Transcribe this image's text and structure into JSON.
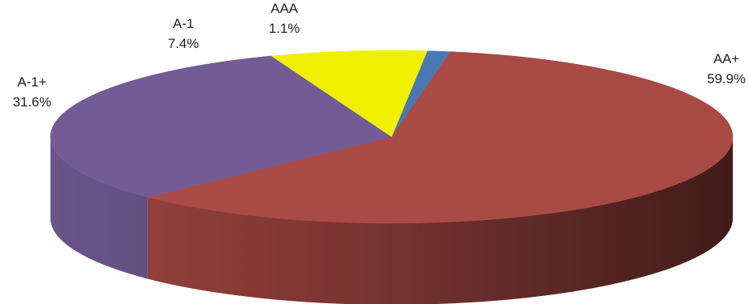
{
  "chart_data": {
    "type": "pie",
    "style": "3d",
    "slices": [
      {
        "label": "AAA",
        "value": 1.1,
        "value_label": "1.1%",
        "color": "#4a78b3"
      },
      {
        "label": "AA+",
        "value": 59.9,
        "value_label": "59.9%",
        "color": "#a94a45"
      },
      {
        "label": "A-1+",
        "value": 31.6,
        "value_label": "31.6%",
        "color": "#735c95"
      },
      {
        "label": "A-1",
        "value": 7.4,
        "value_label": "7.4%",
        "color": "#eef000"
      }
    ]
  }
}
